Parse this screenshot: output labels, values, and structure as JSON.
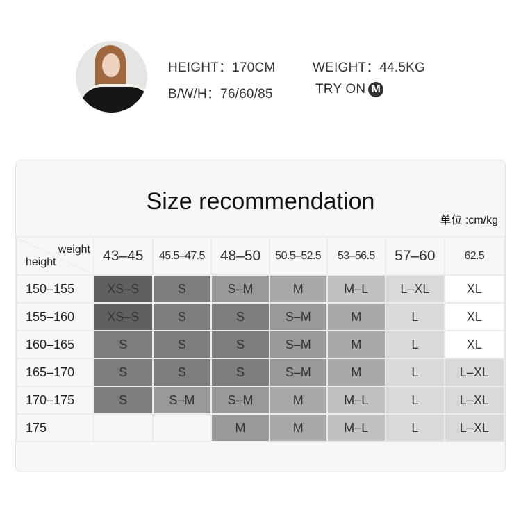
{
  "model": {
    "height_label": "HEIGHT：170CM",
    "weight_label": "WEIGHT：44.5KG",
    "bwh_label": "B/W/H：76/60/85",
    "try_on_label": "TRY ON",
    "try_on_size": "M"
  },
  "chart": {
    "title": "Size recommendation",
    "unit": "单位 :cm/kg",
    "corner_weight": "weight",
    "corner_height": "height",
    "columns": [
      "43–45",
      "45.5–47.5",
      "48–50",
      "50.5–52.5",
      "53–56.5",
      "57–60",
      "62.5"
    ],
    "rows": [
      {
        "height": "150–155",
        "sizes": [
          "XS–S",
          "S",
          "S–M",
          "M",
          "M–L",
          "L–XL",
          "XL"
        ],
        "shades": [
          0,
          1,
          2,
          3,
          4,
          5,
          6
        ]
      },
      {
        "height": "155–160",
        "sizes": [
          "XS–S",
          "S",
          "S",
          "S–M",
          "M",
          "L",
          "XL"
        ],
        "shades": [
          0,
          1,
          1,
          2,
          3,
          5,
          6
        ]
      },
      {
        "height": "160–165",
        "sizes": [
          "S",
          "S",
          "S",
          "S–M",
          "M",
          "L",
          "XL"
        ],
        "shades": [
          1,
          1,
          1,
          2,
          3,
          5,
          6
        ]
      },
      {
        "height": "165–170",
        "sizes": [
          "S",
          "S",
          "S",
          "S–M",
          "M",
          "L",
          "L–XL"
        ],
        "shades": [
          1,
          1,
          1,
          2,
          3,
          5,
          5
        ]
      },
      {
        "height": "170–175",
        "sizes": [
          "S",
          "S–M",
          "S–M",
          "M",
          "M–L",
          "L",
          "L–XL"
        ],
        "shades": [
          1,
          2,
          2,
          3,
          4,
          5,
          5
        ]
      },
      {
        "height": "175",
        "sizes": [
          "",
          "",
          "M",
          "M",
          "M–L",
          "L",
          "L–XL"
        ],
        "shades": [
          7,
          7,
          2,
          3,
          4,
          5,
          5
        ]
      }
    ],
    "shade_colors": [
      "#606060",
      "#7d7d7d",
      "#999999",
      "#a9a9a9",
      "#c1c1c1",
      "#d9d9d9",
      "#ffffff",
      "#f7f7f7"
    ]
  }
}
